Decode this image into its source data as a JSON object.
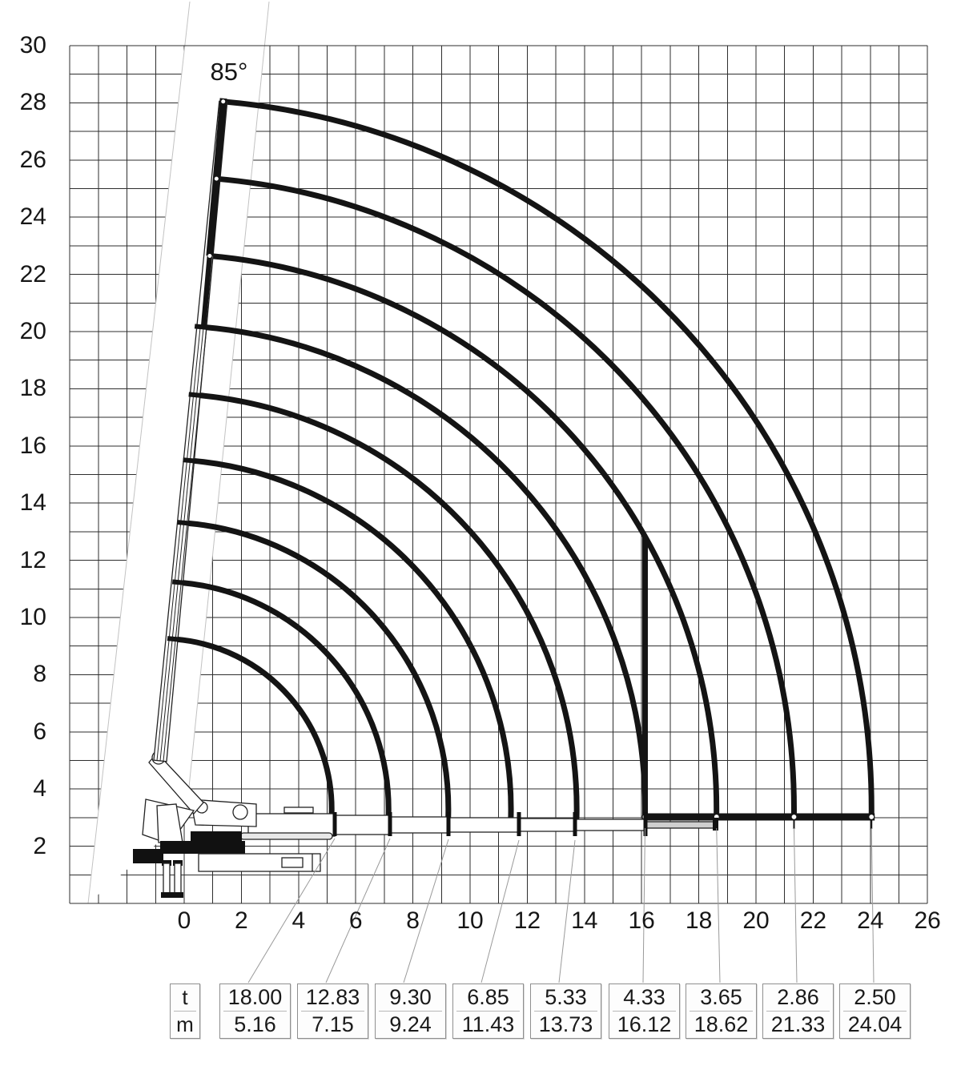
{
  "chart_data": {
    "type": "line",
    "description": "Crane lifting capacity working-range envelope",
    "angle_label": "85°",
    "x_range": [
      -4,
      26
    ],
    "y_range": [
      0,
      30
    ],
    "x_ticks": [
      0,
      2,
      4,
      6,
      8,
      10,
      12,
      14,
      16,
      18,
      20,
      22,
      24,
      26
    ],
    "y_ticks": [
      2,
      4,
      6,
      8,
      10,
      12,
      14,
      16,
      18,
      20,
      22,
      24,
      26,
      28,
      30
    ],
    "grid": "on",
    "boom_angle_deg": 85,
    "arc_center": {
      "x": -0.8,
      "y": 3.3
    },
    "baseline_height_m": 3.0,
    "vertical_limit_x": 16.12,
    "curves": [
      {
        "t": "18.00",
        "m": "5.16"
      },
      {
        "t": "12.83",
        "m": "7.15"
      },
      {
        "t": "9.30",
        "m": "9.24"
      },
      {
        "t": "6.85",
        "m": "11.43"
      },
      {
        "t": "5.33",
        "m": "13.73"
      },
      {
        "t": "4.33",
        "m": "16.12"
      },
      {
        "t": "3.65",
        "m": "18.62"
      },
      {
        "t": "2.86",
        "m": "21.33"
      },
      {
        "t": "2.50",
        "m": "24.04"
      }
    ],
    "table": {
      "unit_top": "t",
      "unit_bottom": "m",
      "columns": [
        {
          "t": "18.00",
          "m": "5.16"
        },
        {
          "t": "12.83",
          "m": "7.15"
        },
        {
          "t": "9.30",
          "m": "9.24"
        },
        {
          "t": "6.85",
          "m": "11.43"
        },
        {
          "t": "5.33",
          "m": "13.73"
        },
        {
          "t": "4.33",
          "m": "16.12"
        },
        {
          "t": "3.65",
          "m": "18.62"
        },
        {
          "t": "2.86",
          "m": "21.33"
        },
        {
          "t": "2.50",
          "m": "24.04"
        }
      ]
    },
    "colors": {
      "curve": "#141414",
      "grid": "#2e2e2e",
      "leader": "#9a9a9a",
      "sector_border": "#c2c2c2"
    }
  }
}
